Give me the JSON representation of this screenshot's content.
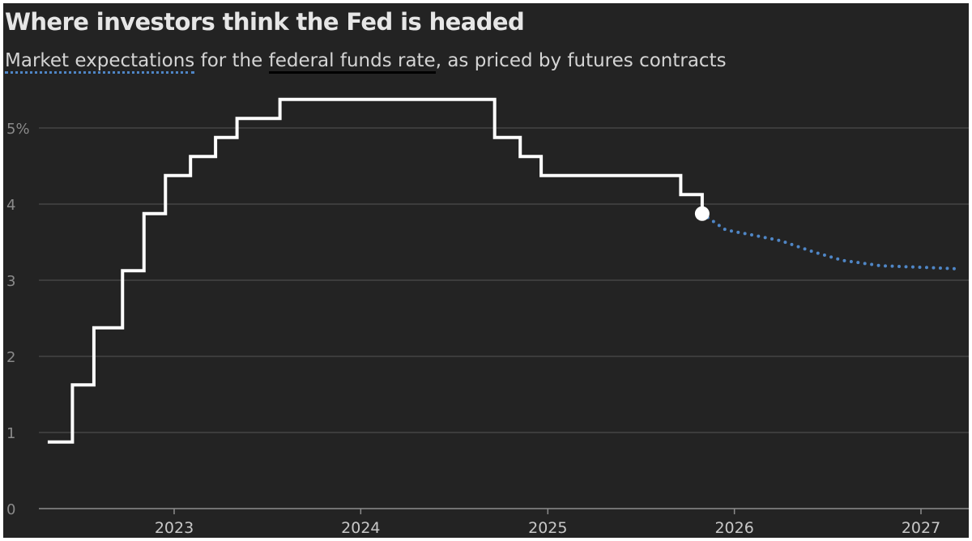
{
  "header": {
    "title": "Where investors think the Fed is headed",
    "subtitle_part1": "Market expectations",
    "subtitle_part2": " for the ",
    "subtitle_part3": "federal funds rate",
    "subtitle_part4": ", as priced by futures contracts"
  },
  "colors": {
    "background": "#232323",
    "historical_line": "#ffffff",
    "expectations_line": "#4f86c6",
    "gridline": "#555555"
  },
  "chart_data": {
    "type": "line",
    "title": "Where investors think the Fed is headed",
    "subtitle": "Market expectations for the federal funds rate, as priced by futures contracts",
    "xlabel": "",
    "ylabel": "",
    "ylim": [
      0,
      5.5
    ],
    "yticks": [
      0,
      1,
      2,
      3,
      4,
      5
    ],
    "ytick_labels": [
      "0",
      "1",
      "2",
      "3",
      "4",
      "5%"
    ],
    "xlim": [
      "2022-05-01",
      "2027-04-01"
    ],
    "xtick_labels": [
      "2023",
      "2024",
      "2025",
      "2026",
      "2027"
    ],
    "xticks": [
      "2023-01-01",
      "2024-01-01",
      "2025-01-01",
      "2026-01-01",
      "2027-01-01"
    ],
    "grid": true,
    "series": [
      {
        "style": "step-solid",
        "points": [
          [
            "2022-05-05",
            0.875
          ],
          [
            "2022-06-16",
            1.625
          ],
          [
            "2022-07-28",
            2.375
          ],
          [
            "2022-09-22",
            3.125
          ],
          [
            "2022-11-03",
            3.875
          ],
          [
            "2022-12-15",
            4.375
          ],
          [
            "2023-02-02",
            4.625
          ],
          [
            "2023-03-23",
            4.875
          ],
          [
            "2023-05-04",
            5.125
          ],
          [
            "2023-07-27",
            5.375
          ],
          [
            "2024-09-19",
            4.875
          ],
          [
            "2024-11-08",
            4.625
          ],
          [
            "2024-12-19",
            4.375
          ],
          [
            "2025-09-18",
            4.125
          ],
          [
            "2025-10-30",
            3.875
          ]
        ]
      },
      {
        "style": "dotted",
        "points": [
          [
            "2025-10-30",
            3.875
          ],
          [
            "2025-12-15",
            3.66
          ],
          [
            "2026-02-01",
            3.6
          ],
          [
            "2026-04-01",
            3.52
          ],
          [
            "2026-06-01",
            3.38
          ],
          [
            "2026-08-01",
            3.26
          ],
          [
            "2026-10-15",
            3.19
          ],
          [
            "2027-01-01",
            3.17
          ],
          [
            "2027-03-15",
            3.15
          ]
        ]
      }
    ],
    "markers": [
      {
        "x": "2025-10-30",
        "y": 3.875,
        "shape": "circle"
      }
    ]
  }
}
